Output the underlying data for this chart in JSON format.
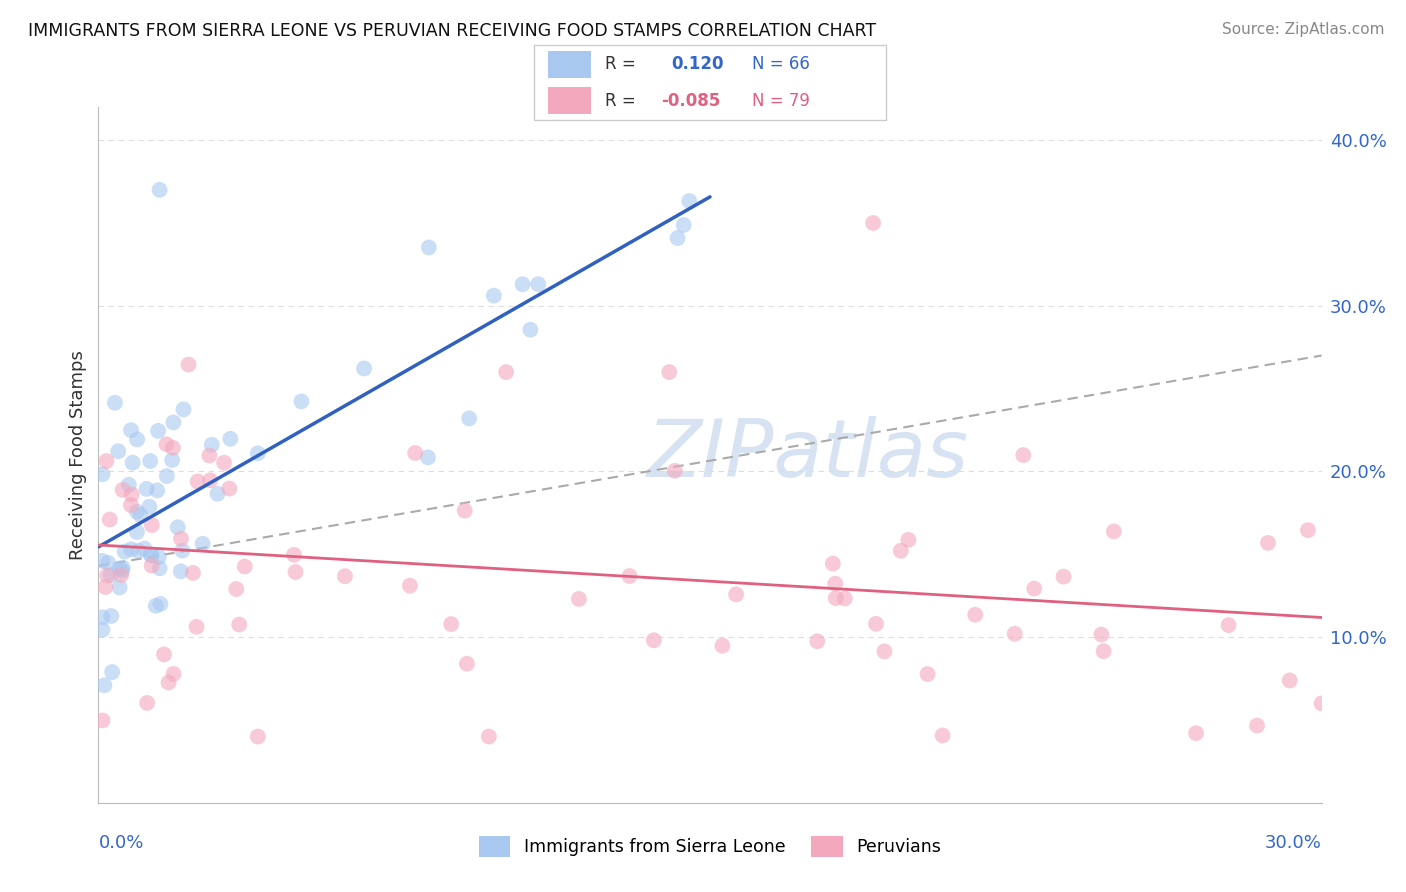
{
  "title": "IMMIGRANTS FROM SIERRA LEONE VS PERUVIAN RECEIVING FOOD STAMPS CORRELATION CHART",
  "source": "Source: ZipAtlas.com",
  "ylabel": "Receiving Food Stamps",
  "xlim": [
    0.0,
    0.3
  ],
  "ylim": [
    0.0,
    0.42
  ],
  "legend1_R": "0.120",
  "legend1_N": "66",
  "legend2_R": "-0.085",
  "legend2_N": "79",
  "blue_color": "#A8C8F0",
  "pink_color": "#F4A8BE",
  "blue_line_color": "#3060C0",
  "pink_line_color": "#E06080",
  "dash_line_color": "#AAAAAA",
  "watermark": "ZIPatlas",
  "watermark_color": "#D0DFF0",
  "grid_color": "#DDDDDD",
  "right_ytick_vals": [
    0.1,
    0.2,
    0.3,
    0.4
  ],
  "right_ytick_labels": [
    "10.0%",
    "20.0%",
    "30.0%",
    "40.0%"
  ]
}
